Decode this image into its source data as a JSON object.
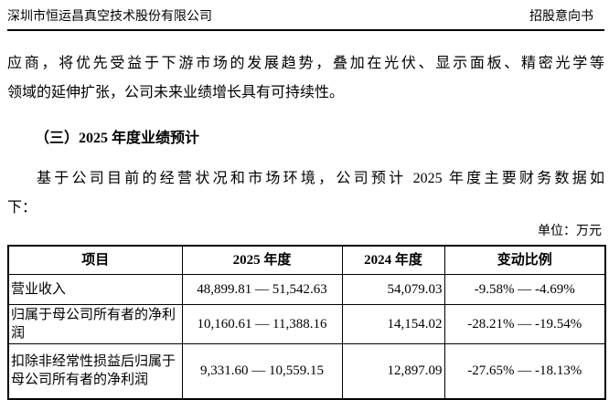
{
  "header": {
    "company": "深圳市恒运昌真空技术股份有限公司",
    "doc_type": "招股意向书"
  },
  "body": {
    "continuation_lines": [
      "应商，将优先受益于下游市场的发展趋势，叠加在光伏、显示面板、精密光学等",
      "领域的延伸扩张，公司未来业绩增长具有可持续性。"
    ],
    "section_heading": "（三）2025 年度业绩预计",
    "intro_lines": [
      "基于公司目前的经营状况和市场环境，公司预计 2025 年度主要财务数据如",
      "下："
    ],
    "unit_label": "单位：万元"
  },
  "table": {
    "headers": [
      "项目",
      "2025 年度",
      "2024 年度",
      "变动比例"
    ],
    "rows": [
      {
        "item": "营业收入",
        "y2025": "48,899.81 — 51,542.63",
        "y2024": "54,079.03",
        "change": "-9.58% — -4.69%"
      },
      {
        "item": "归属于母公司所有者的净利润",
        "y2025": "10,160.61 — 11,388.16",
        "y2024": "14,154.02",
        "change": "-28.21% — -19.54%"
      },
      {
        "item": "扣除非经常性损益后归属于母公司所有者的净利润",
        "y2025": "9,331.60 — 10,559.15",
        "y2024": "12,897.09",
        "change": "-27.65% — -18.13%"
      }
    ]
  }
}
